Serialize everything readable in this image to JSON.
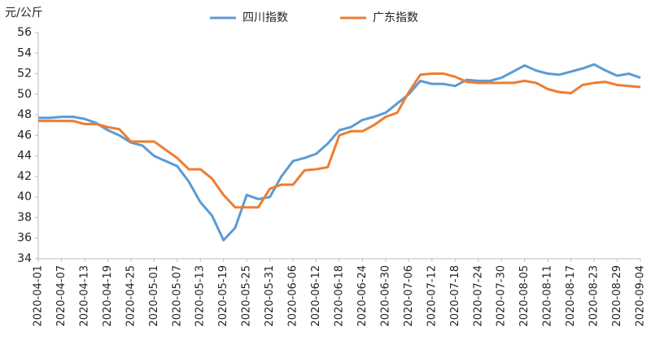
{
  "chart_data": {
    "type": "line",
    "y_label": "元/公斤",
    "categories": [
      "2020-04-01",
      null,
      "2020-04-07",
      null,
      "2020-04-13",
      null,
      "2020-04-19",
      null,
      "2020-04-25",
      null,
      "2020-05-01",
      null,
      "2020-05-07",
      null,
      "2020-05-13",
      null,
      "2020-05-19",
      null,
      "2020-05-25",
      null,
      "2020-05-31",
      null,
      "2020-06-06",
      null,
      "2020-06-12",
      null,
      "2020-06-18",
      null,
      "2020-06-24",
      null,
      "2020-06-30",
      null,
      "2020-07-06",
      null,
      "2020-07-12",
      null,
      "2020-07-18",
      null,
      "2020-07-24",
      null,
      "2020-07-30",
      null,
      "2020-08-05",
      null,
      "2020-08-11",
      null,
      "2020-08-17",
      null,
      "2020-08-23",
      null,
      "2020-08-29",
      null,
      "2020-09-04"
    ],
    "series": [
      {
        "name": "四川指数",
        "color": "#5b9bd5",
        "values": [
          47.7,
          47.7,
          47.8,
          47.8,
          47.6,
          47.2,
          46.5,
          46.0,
          45.3,
          45.0,
          44.0,
          43.5,
          43.0,
          41.5,
          39.5,
          38.2,
          35.8,
          37.0,
          40.2,
          39.8,
          40.0,
          42.0,
          43.5,
          43.8,
          44.2,
          45.2,
          46.5,
          46.8,
          47.5,
          47.8,
          48.2,
          49.1,
          50.0,
          51.3,
          51.0,
          51.0,
          50.8,
          51.4,
          51.3,
          51.3,
          51.6,
          52.2,
          52.8,
          52.3,
          52.0,
          51.9,
          52.2,
          52.5,
          52.9,
          52.3,
          51.8,
          52.0,
          51.6
        ]
      },
      {
        "name": "广东指数",
        "color": "#ed7d31",
        "values": [
          47.4,
          47.4,
          47.4,
          47.4,
          47.1,
          47.1,
          46.8,
          46.6,
          45.4,
          45.4,
          45.4,
          44.6,
          43.8,
          42.7,
          42.7,
          41.8,
          40.2,
          39.0,
          39.0,
          39.0,
          40.8,
          41.2,
          41.2,
          42.6,
          42.7,
          42.9,
          46.0,
          46.4,
          46.4,
          47.0,
          47.8,
          48.2,
          50.2,
          51.9,
          52.0,
          52.0,
          51.7,
          51.2,
          51.1,
          51.1,
          51.1,
          51.1,
          51.3,
          51.1,
          50.5,
          50.2,
          50.1,
          50.9,
          51.1,
          51.2,
          50.9,
          50.8,
          50.7
        ]
      }
    ],
    "ylim": [
      34,
      56
    ],
    "yticks": [
      34,
      36,
      38,
      40,
      42,
      44,
      46,
      48,
      50,
      52,
      54,
      56
    ],
    "grid": false
  }
}
